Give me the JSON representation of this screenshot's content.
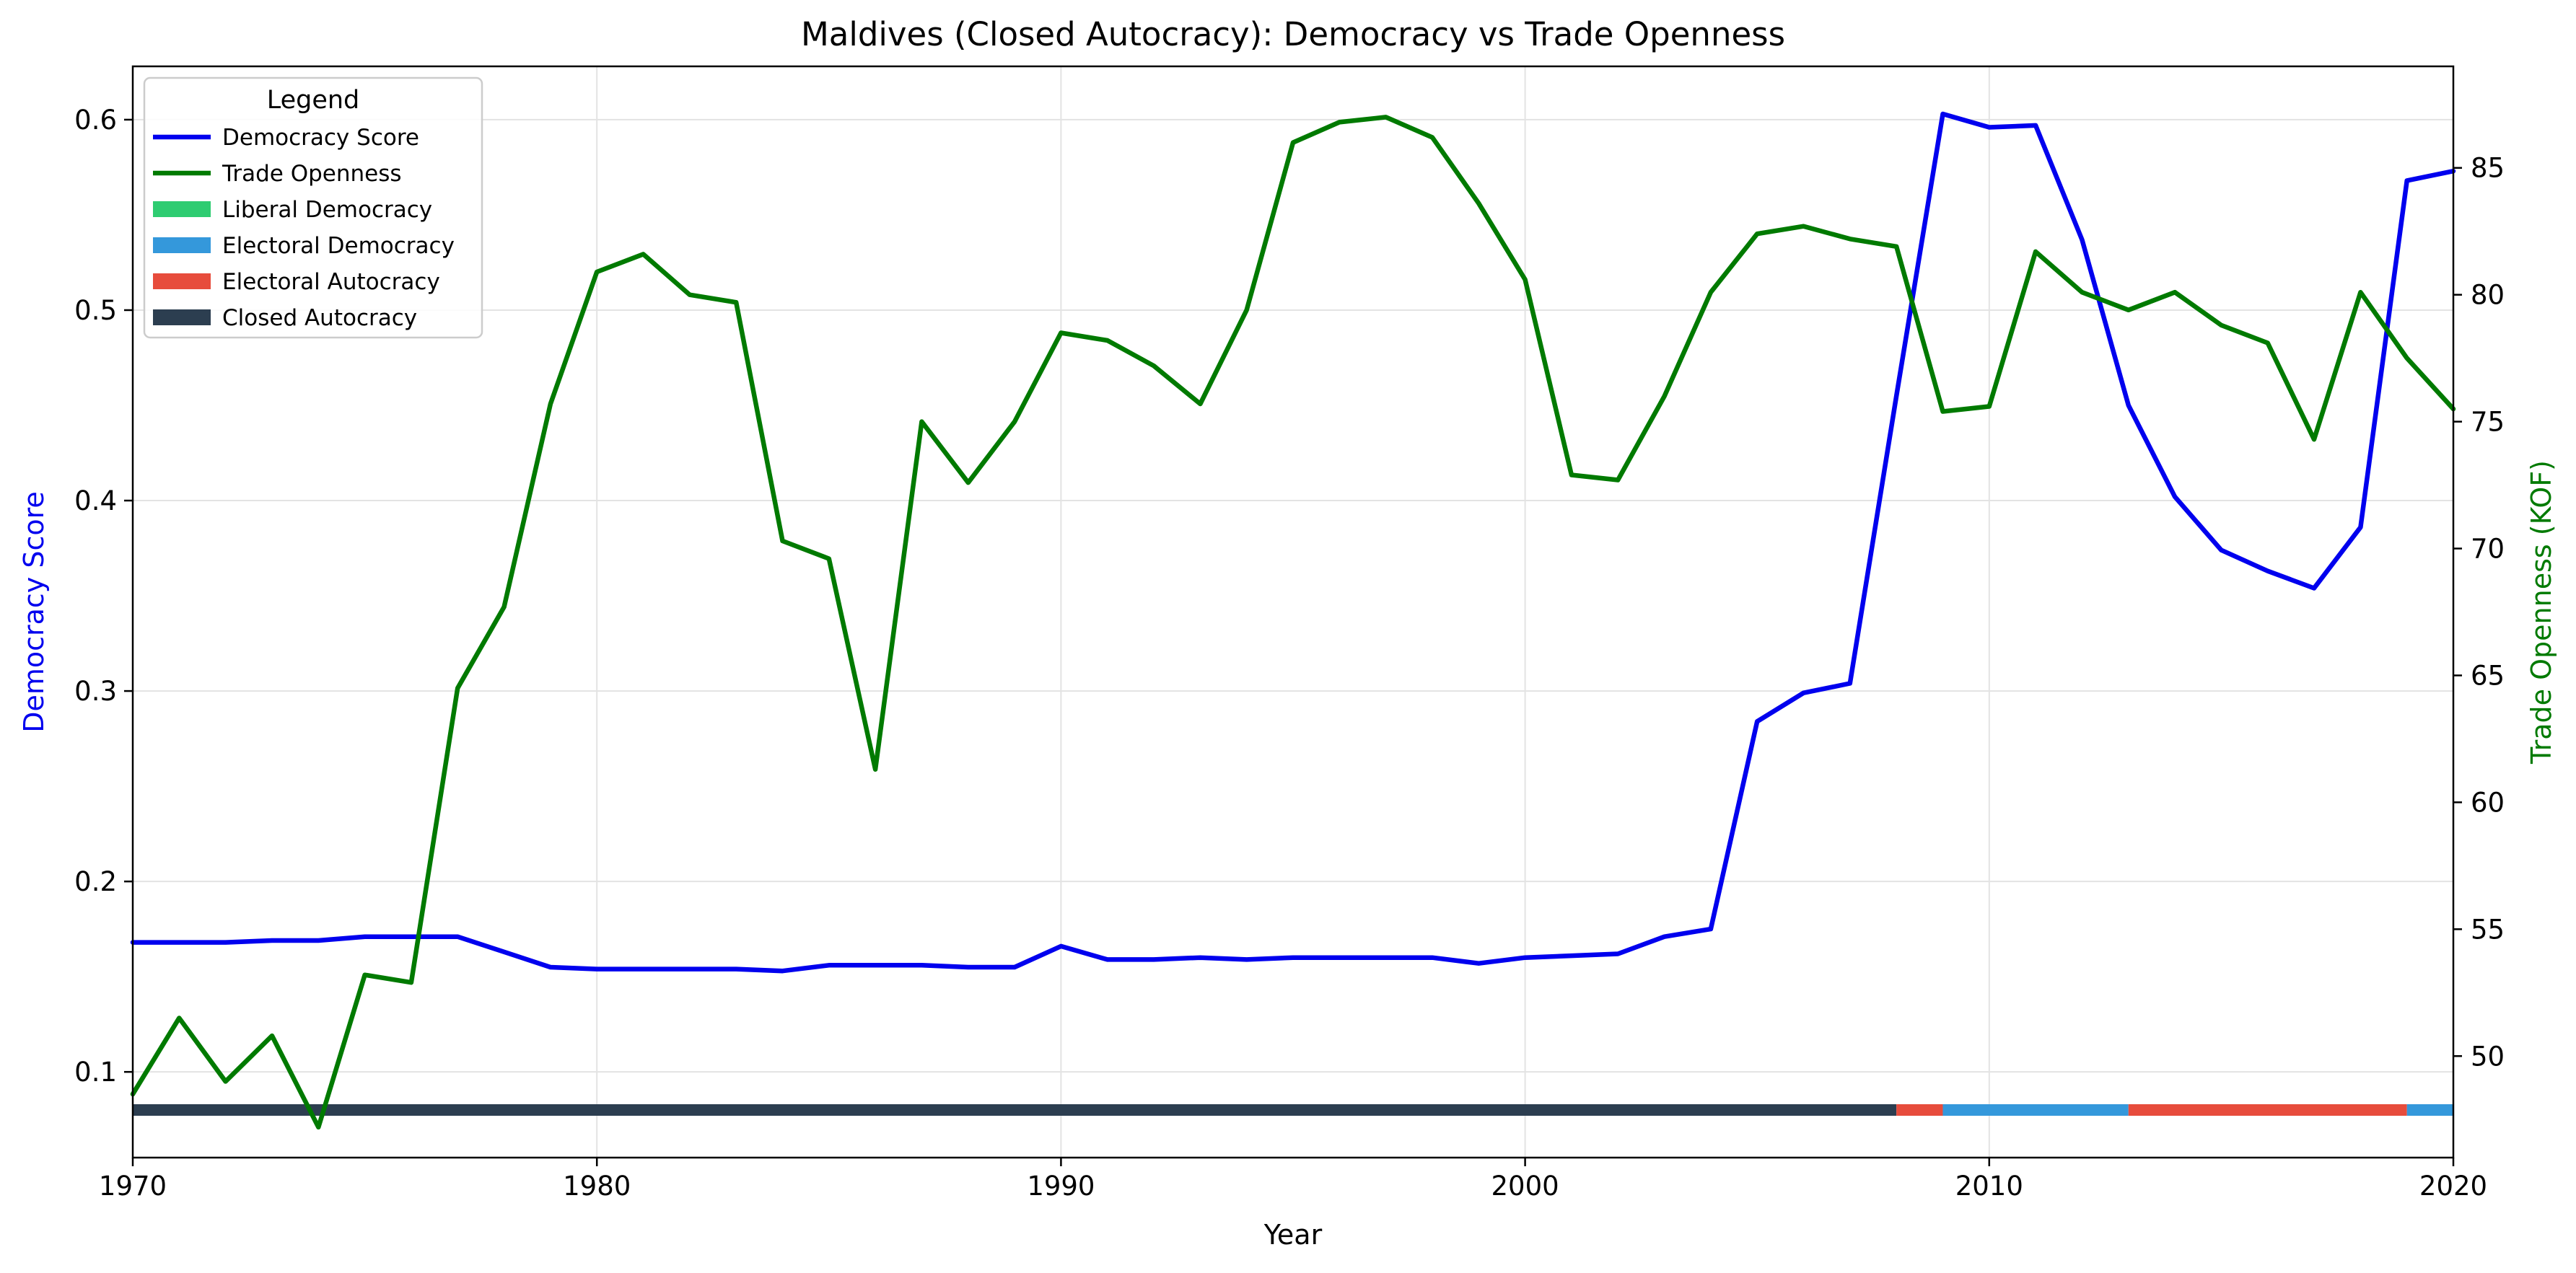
{
  "chart_data": {
    "type": "line",
    "title": "Maldives (Closed Autocracy): Democracy vs Trade Openness",
    "xlabel": "Year",
    "ylabel_left": "Democracy Score",
    "ylabel_right": "Trade Openness (KOF)",
    "xlim": [
      1970,
      2020
    ],
    "ylim_left": [
      0.055,
      0.628
    ],
    "ylim_right": [
      46.0,
      89.0
    ],
    "x_ticks": [
      1970,
      1980,
      1990,
      2000,
      2010,
      2020
    ],
    "y_left_ticks": [
      "0.1",
      "0.2",
      "0.3",
      "0.4",
      "0.5",
      "0.6"
    ],
    "y_right_ticks": [
      "50",
      "55",
      "60",
      "65",
      "70",
      "75",
      "80",
      "85"
    ],
    "grid": true,
    "legend_placement": "top-left",
    "legend_title": "Legend",
    "legend": [
      {
        "label": "Democracy Score",
        "kind": "line",
        "color": "#0000ee"
      },
      {
        "label": "Trade Openness",
        "kind": "line",
        "color": "#007a00"
      },
      {
        "label": "Liberal Democracy",
        "kind": "patch",
        "color": "#2ecc71"
      },
      {
        "label": "Electoral Democracy",
        "kind": "patch",
        "color": "#3498db"
      },
      {
        "label": "Electoral Autocracy",
        "kind": "patch",
        "color": "#e74c3c"
      },
      {
        "label": "Closed Autocracy",
        "kind": "patch",
        "color": "#2c3e50"
      }
    ],
    "series": [
      {
        "name": "Democracy Score",
        "axis": "left",
        "color": "#0000ee",
        "x": [
          1970,
          1971,
          1972,
          1973,
          1974,
          1975,
          1976,
          1977,
          1978,
          1979,
          1980,
          1981,
          1982,
          1983,
          1984,
          1985,
          1986,
          1987,
          1988,
          1989,
          1990,
          1991,
          1992,
          1993,
          1994,
          1995,
          1996,
          1997,
          1998,
          1999,
          2000,
          2001,
          2002,
          2003,
          2004,
          2005,
          2006,
          2007,
          2008,
          2009,
          2010,
          2011,
          2012,
          2013,
          2014,
          2015,
          2016,
          2017,
          2018,
          2019,
          2020
        ],
        "values": [
          0.168,
          0.168,
          0.168,
          0.169,
          0.169,
          0.171,
          0.171,
          0.171,
          0.163,
          0.155,
          0.154,
          0.154,
          0.154,
          0.154,
          0.153,
          0.156,
          0.156,
          0.156,
          0.155,
          0.155,
          0.166,
          0.159,
          0.159,
          0.16,
          0.159,
          0.16,
          0.16,
          0.16,
          0.16,
          0.157,
          0.16,
          0.161,
          0.162,
          0.171,
          0.175,
          0.284,
          0.299,
          0.304,
          0.455,
          0.603,
          0.596,
          0.597,
          0.537,
          0.45,
          0.402,
          0.374,
          0.363,
          0.354,
          0.386,
          0.568,
          0.573
        ]
      },
      {
        "name": "Trade Openness",
        "axis": "right",
        "color": "#007a00",
        "x": [
          1970,
          1971,
          1972,
          1973,
          1974,
          1975,
          1976,
          1977,
          1978,
          1979,
          1980,
          1981,
          1982,
          1983,
          1984,
          1985,
          1986,
          1987,
          1988,
          1989,
          1990,
          1991,
          1992,
          1993,
          1994,
          1995,
          1996,
          1997,
          1998,
          1999,
          2000,
          2001,
          2002,
          2003,
          2004,
          2005,
          2006,
          2007,
          2008,
          2009,
          2010,
          2011,
          2012,
          2013,
          2014,
          2015,
          2016,
          2017,
          2018,
          2019,
          2020
        ],
        "values": [
          48.5,
          51.5,
          49.0,
          50.8,
          47.2,
          53.2,
          52.9,
          64.5,
          67.7,
          75.7,
          80.9,
          81.6,
          80.0,
          79.7,
          70.3,
          69.6,
          61.3,
          75.0,
          72.6,
          75.0,
          78.5,
          78.2,
          77.2,
          75.7,
          79.4,
          86.0,
          86.8,
          87.0,
          86.2,
          83.6,
          80.6,
          72.9,
          72.7,
          76.0,
          80.1,
          82.4,
          82.7,
          82.2,
          81.9,
          75.4,
          75.6,
          81.7,
          80.1,
          79.4,
          80.1,
          78.8,
          78.1,
          74.3,
          80.1,
          77.5,
          75.5
        ]
      }
    ],
    "regime_bar": {
      "y_value": 0.08,
      "segments": [
        {
          "from": 1970,
          "to": 2008,
          "regime": "Closed Autocracy",
          "color": "#2c3e50"
        },
        {
          "from": 2008,
          "to": 2009,
          "regime": "Electoral Autocracy",
          "color": "#e74c3c"
        },
        {
          "from": 2009,
          "to": 2013,
          "regime": "Electoral Democracy",
          "color": "#3498db"
        },
        {
          "from": 2013,
          "to": 2019,
          "regime": "Electoral Autocracy",
          "color": "#e74c3c"
        },
        {
          "from": 2019,
          "to": 2020,
          "regime": "Electoral Democracy",
          "color": "#3498db"
        }
      ]
    }
  }
}
